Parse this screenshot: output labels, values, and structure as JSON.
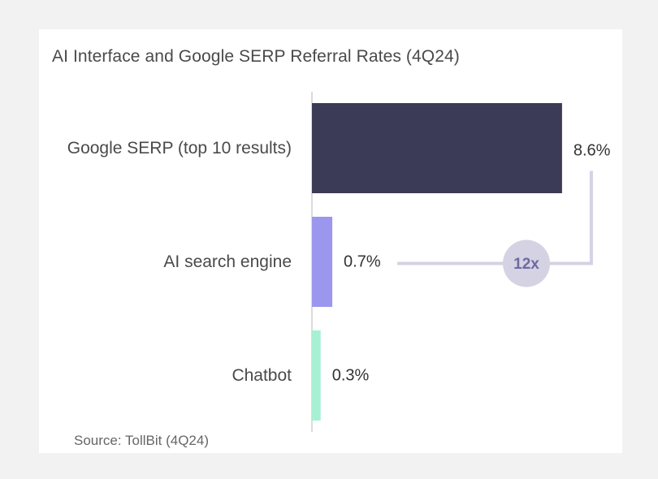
{
  "chart_data": {
    "type": "bar",
    "orientation": "horizontal",
    "title": "AI Interface and Google SERP Referral Rates (4Q24)",
    "source": "Source: TollBit (4Q24)",
    "categories": [
      "Google SERP (top 10 results)",
      "AI search engine",
      "Chatbot"
    ],
    "values": [
      8.6,
      0.7,
      0.3
    ],
    "value_labels": [
      "8.6%",
      "0.7%",
      "0.3%"
    ],
    "colors": [
      "#3b3a57",
      "#9b97ee",
      "#a8f0d4"
    ],
    "xlim": [
      0,
      10
    ],
    "grid": false,
    "annotation": {
      "label": "12x",
      "between": [
        "Google SERP (top 10 results)",
        "AI search engine"
      ],
      "color": "#d4d2e3"
    }
  }
}
